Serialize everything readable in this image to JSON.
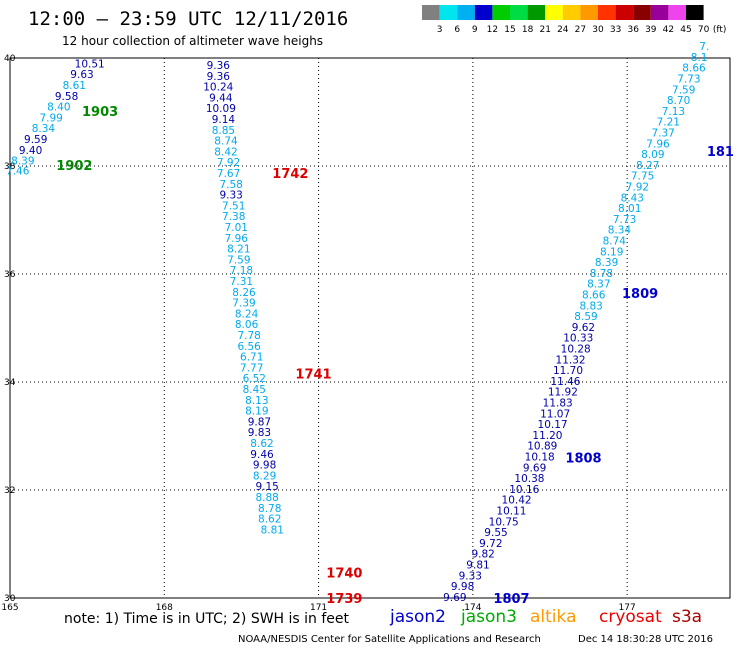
{
  "header": {
    "title": "12:00 – 23:59 UTC 12/11/2016",
    "subtitle": "12 hour collection of altimeter wave heighs"
  },
  "footer": {
    "note": "note:  1)  Time is in UTC;  2)  SWH is in feet",
    "credit": "NOAA/NESDIS Center for Satellite Applications and Research",
    "timestamp": "Dec 14 18:30:28 UTC 2016"
  },
  "missions": [
    {
      "name": "jason2",
      "color": "#0000cc"
    },
    {
      "name": "jason3",
      "color": "#00aa00"
    },
    {
      "name": "altika",
      "color": "#ff9900"
    },
    {
      "name": "cryosat",
      "color": "#ee0000"
    },
    {
      "name": "s3a",
      "color": "#aa0000"
    }
  ],
  "chart_data": {
    "type": "scatter",
    "xlim": [
      165,
      179
    ],
    "ylim": [
      30,
      40
    ],
    "x_ticks": [
      165,
      168,
      171,
      174,
      177
    ],
    "y_ticks": [
      30,
      32,
      34,
      36,
      38,
      40
    ],
    "grid": true,
    "colorbar": {
      "unit": "(ft)",
      "labels": [
        "3",
        "6",
        "9",
        "12",
        "15",
        "18",
        "21",
        "24",
        "27",
        "30",
        "33",
        "36",
        "39",
        "42",
        "45",
        "70"
      ],
      "colors": [
        "#808080",
        "#00e5ee",
        "#00b0f0",
        "#0000cc",
        "#00cc00",
        "#00dd44",
        "#009900",
        "#ffff00",
        "#ffcc00",
        "#ff9900",
        "#ff3300",
        "#cc0000",
        "#880000",
        "#990099",
        "#ee44ee",
        "#000000"
      ]
    },
    "time_labels": [
      {
        "text": "1903",
        "lon": 166.4,
        "lat": 39.02,
        "color": "#008800"
      },
      {
        "text": "1902",
        "lon": 165.9,
        "lat": 38.02,
        "color": "#008800"
      },
      {
        "text": "1742",
        "lon": 170.1,
        "lat": 37.87,
        "color": "#dd0000"
      },
      {
        "text": "1741",
        "lon": 170.55,
        "lat": 34.16,
        "color": "#dd0000"
      },
      {
        "text": "1740",
        "lon": 171.15,
        "lat": 30.47,
        "color": "#dd0000"
      },
      {
        "text": "1739",
        "lon": 171.15,
        "lat": 30.0,
        "color": "#dd0000"
      },
      {
        "text": "1807",
        "lon": 174.4,
        "lat": 30.0,
        "color": "#0000cc"
      },
      {
        "text": "1808",
        "lon": 175.8,
        "lat": 32.6,
        "color": "#0000cc"
      },
      {
        "text": "1809",
        "lon": 176.9,
        "lat": 35.65,
        "color": "#0000cc"
      },
      {
        "text": "181",
        "lon": 178.55,
        "lat": 38.28,
        "color": "#0000cc"
      }
    ],
    "series": [
      {
        "name": "1902-1903",
        "points": [
          {
            "lon": 166.55,
            "lat": 39.9,
            "v": "10.51"
          },
          {
            "lon": 166.4,
            "lat": 39.7,
            "v": "9.63"
          },
          {
            "lon": 166.25,
            "lat": 39.5,
            "v": "8.61"
          },
          {
            "lon": 166.1,
            "lat": 39.3,
            "v": "9.58"
          },
          {
            "lon": 165.95,
            "lat": 39.1,
            "v": "8.40"
          },
          {
            "lon": 165.8,
            "lat": 38.9,
            "v": "7.99"
          },
          {
            "lon": 165.65,
            "lat": 38.7,
            "v": "8.34"
          },
          {
            "lon": 165.5,
            "lat": 38.5,
            "v": "9.59"
          },
          {
            "lon": 165.4,
            "lat": 38.3,
            "v": "9.40"
          },
          {
            "lon": 165.25,
            "lat": 38.1,
            "v": "8.39"
          },
          {
            "lon": 165.15,
            "lat": 37.92,
            "v": "7.46"
          }
        ]
      },
      {
        "name": "1739-1742",
        "points": [
          {
            "lon": 169.05,
            "lat": 39.87,
            "v": "9.36"
          },
          {
            "lon": 169.05,
            "lat": 39.67,
            "v": "9.36"
          },
          {
            "lon": 169.05,
            "lat": 39.47,
            "v": "10.24"
          },
          {
            "lon": 169.1,
            "lat": 39.27,
            "v": "9.44"
          },
          {
            "lon": 169.1,
            "lat": 39.07,
            "v": "10.09"
          },
          {
            "lon": 169.15,
            "lat": 38.87,
            "v": "9.14"
          },
          {
            "lon": 169.15,
            "lat": 38.67,
            "v": "8.85"
          },
          {
            "lon": 169.2,
            "lat": 38.47,
            "v": "8.74"
          },
          {
            "lon": 169.2,
            "lat": 38.27,
            "v": "8.42"
          },
          {
            "lon": 169.25,
            "lat": 38.07,
            "v": "7.92"
          },
          {
            "lon": 169.25,
            "lat": 37.87,
            "v": "7.67"
          },
          {
            "lon": 169.3,
            "lat": 37.67,
            "v": "7.58"
          },
          {
            "lon": 169.3,
            "lat": 37.47,
            "v": "9.33"
          },
          {
            "lon": 169.35,
            "lat": 37.27,
            "v": "7.51"
          },
          {
            "lon": 169.35,
            "lat": 37.07,
            "v": "7.38"
          },
          {
            "lon": 169.4,
            "lat": 36.87,
            "v": "7.01"
          },
          {
            "lon": 169.4,
            "lat": 36.67,
            "v": "7.96"
          },
          {
            "lon": 169.45,
            "lat": 36.47,
            "v": "8.21"
          },
          {
            "lon": 169.45,
            "lat": 36.27,
            "v": "7.59"
          },
          {
            "lon": 169.5,
            "lat": 36.07,
            "v": "7.18"
          },
          {
            "lon": 169.5,
            "lat": 35.87,
            "v": "7.31"
          },
          {
            "lon": 169.55,
            "lat": 35.67,
            "v": "8.26"
          },
          {
            "lon": 169.55,
            "lat": 35.47,
            "v": "7.39"
          },
          {
            "lon": 169.6,
            "lat": 35.27,
            "v": "8.24"
          },
          {
            "lon": 169.6,
            "lat": 35.07,
            "v": "8.06"
          },
          {
            "lon": 169.65,
            "lat": 34.87,
            "v": "7.78"
          },
          {
            "lon": 169.65,
            "lat": 34.67,
            "v": "6.56"
          },
          {
            "lon": 169.7,
            "lat": 34.47,
            "v": "6.71"
          },
          {
            "lon": 169.7,
            "lat": 34.27,
            "v": "7.77"
          },
          {
            "lon": 169.75,
            "lat": 34.07,
            "v": "6.52"
          },
          {
            "lon": 169.75,
            "lat": 33.87,
            "v": "8.45"
          },
          {
            "lon": 169.8,
            "lat": 33.67,
            "v": "8.13"
          },
          {
            "lon": 169.8,
            "lat": 33.47,
            "v": "8.19"
          },
          {
            "lon": 169.85,
            "lat": 33.27,
            "v": "9.87"
          },
          {
            "lon": 169.85,
            "lat": 33.07,
            "v": "9.83"
          },
          {
            "lon": 169.9,
            "lat": 32.87,
            "v": "8.62"
          },
          {
            "lon": 169.9,
            "lat": 32.67,
            "v": "9.46"
          },
          {
            "lon": 169.95,
            "lat": 32.47,
            "v": "9.98"
          },
          {
            "lon": 169.95,
            "lat": 32.27,
            "v": "8.29"
          },
          {
            "lon": 170.0,
            "lat": 32.07,
            "v": "9.15"
          },
          {
            "lon": 170.0,
            "lat": 31.87,
            "v": "8.88"
          },
          {
            "lon": 170.05,
            "lat": 31.67,
            "v": "8.78"
          },
          {
            "lon": 170.05,
            "lat": 31.47,
            "v": "8.62"
          },
          {
            "lon": 170.1,
            "lat": 31.27,
            "v": "8.81"
          }
        ]
      },
      {
        "name": "1807-1809",
        "points": [
          {
            "lon": 173.65,
            "lat": 30.02,
            "v": "9.69"
          },
          {
            "lon": 173.8,
            "lat": 30.22,
            "v": "9.98"
          },
          {
            "lon": 173.95,
            "lat": 30.42,
            "v": "9.33"
          },
          {
            "lon": 174.1,
            "lat": 30.62,
            "v": "9.81"
          },
          {
            "lon": 174.2,
            "lat": 30.82,
            "v": "9.82"
          },
          {
            "lon": 174.35,
            "lat": 31.02,
            "v": "9.72"
          },
          {
            "lon": 174.45,
            "lat": 31.22,
            "v": "9.55"
          },
          {
            "lon": 174.6,
            "lat": 31.42,
            "v": "10.75"
          },
          {
            "lon": 174.75,
            "lat": 31.62,
            "v": "10.11"
          },
          {
            "lon": 174.85,
            "lat": 31.82,
            "v": "10.42"
          },
          {
            "lon": 175.0,
            "lat": 32.02,
            "v": "10.16"
          },
          {
            "lon": 175.1,
            "lat": 32.22,
            "v": "10.38"
          },
          {
            "lon": 175.2,
            "lat": 32.42,
            "v": "9.69"
          },
          {
            "lon": 175.3,
            "lat": 32.62,
            "v": "10.18"
          },
          {
            "lon": 175.35,
            "lat": 32.82,
            "v": "10.89"
          },
          {
            "lon": 175.45,
            "lat": 33.02,
            "v": "11.20"
          },
          {
            "lon": 175.55,
            "lat": 33.22,
            "v": "10.17"
          },
          {
            "lon": 175.6,
            "lat": 33.42,
            "v": "11.07"
          },
          {
            "lon": 175.65,
            "lat": 33.62,
            "v": "11.83"
          },
          {
            "lon": 175.75,
            "lat": 33.82,
            "v": "11.92"
          },
          {
            "lon": 175.8,
            "lat": 34.02,
            "v": "11.46"
          },
          {
            "lon": 175.85,
            "lat": 34.22,
            "v": "11.70"
          },
          {
            "lon": 175.9,
            "lat": 34.42,
            "v": "11.32"
          },
          {
            "lon": 176.0,
            "lat": 34.62,
            "v": "10.28"
          },
          {
            "lon": 176.05,
            "lat": 34.82,
            "v": "10.33"
          },
          {
            "lon": 176.15,
            "lat": 35.02,
            "v": "9.62"
          },
          {
            "lon": 176.2,
            "lat": 35.22,
            "v": "8.59"
          },
          {
            "lon": 176.3,
            "lat": 35.42,
            "v": "8.83"
          },
          {
            "lon": 176.35,
            "lat": 35.62,
            "v": "8.66"
          },
          {
            "lon": 176.45,
            "lat": 35.82,
            "v": "8.37"
          },
          {
            "lon": 176.5,
            "lat": 36.02,
            "v": "8.78"
          },
          {
            "lon": 176.6,
            "lat": 36.22,
            "v": "8.39"
          },
          {
            "lon": 176.7,
            "lat": 36.42,
            "v": "8.19"
          },
          {
            "lon": 176.75,
            "lat": 36.62,
            "v": "8.74"
          },
          {
            "lon": 176.85,
            "lat": 36.82,
            "v": "8.34"
          },
          {
            "lon": 176.95,
            "lat": 37.02,
            "v": "7.73"
          },
          {
            "lon": 177.05,
            "lat": 37.22,
            "v": "8.01"
          },
          {
            "lon": 177.1,
            "lat": 37.42,
            "v": "8.43"
          },
          {
            "lon": 177.2,
            "lat": 37.62,
            "v": "7.92"
          },
          {
            "lon": 177.3,
            "lat": 37.82,
            "v": "7.75"
          },
          {
            "lon": 177.4,
            "lat": 38.02,
            "v": "8.27"
          },
          {
            "lon": 177.5,
            "lat": 38.22,
            "v": "8.09"
          },
          {
            "lon": 177.6,
            "lat": 38.42,
            "v": "7.96"
          },
          {
            "lon": 177.7,
            "lat": 38.62,
            "v": "7.37"
          },
          {
            "lon": 177.8,
            "lat": 38.82,
            "v": "7.21"
          },
          {
            "lon": 177.9,
            "lat": 39.02,
            "v": "7.13"
          },
          {
            "lon": 178.0,
            "lat": 39.22,
            "v": "8.70"
          },
          {
            "lon": 178.1,
            "lat": 39.42,
            "v": "7.59"
          },
          {
            "lon": 178.2,
            "lat": 39.62,
            "v": "7.73"
          },
          {
            "lon": 178.3,
            "lat": 39.82,
            "v": "8.66"
          },
          {
            "lon": 178.4,
            "lat": 40.02,
            "v": "8.1"
          },
          {
            "lon": 178.5,
            "lat": 40.22,
            "v": "7."
          }
        ]
      }
    ]
  }
}
